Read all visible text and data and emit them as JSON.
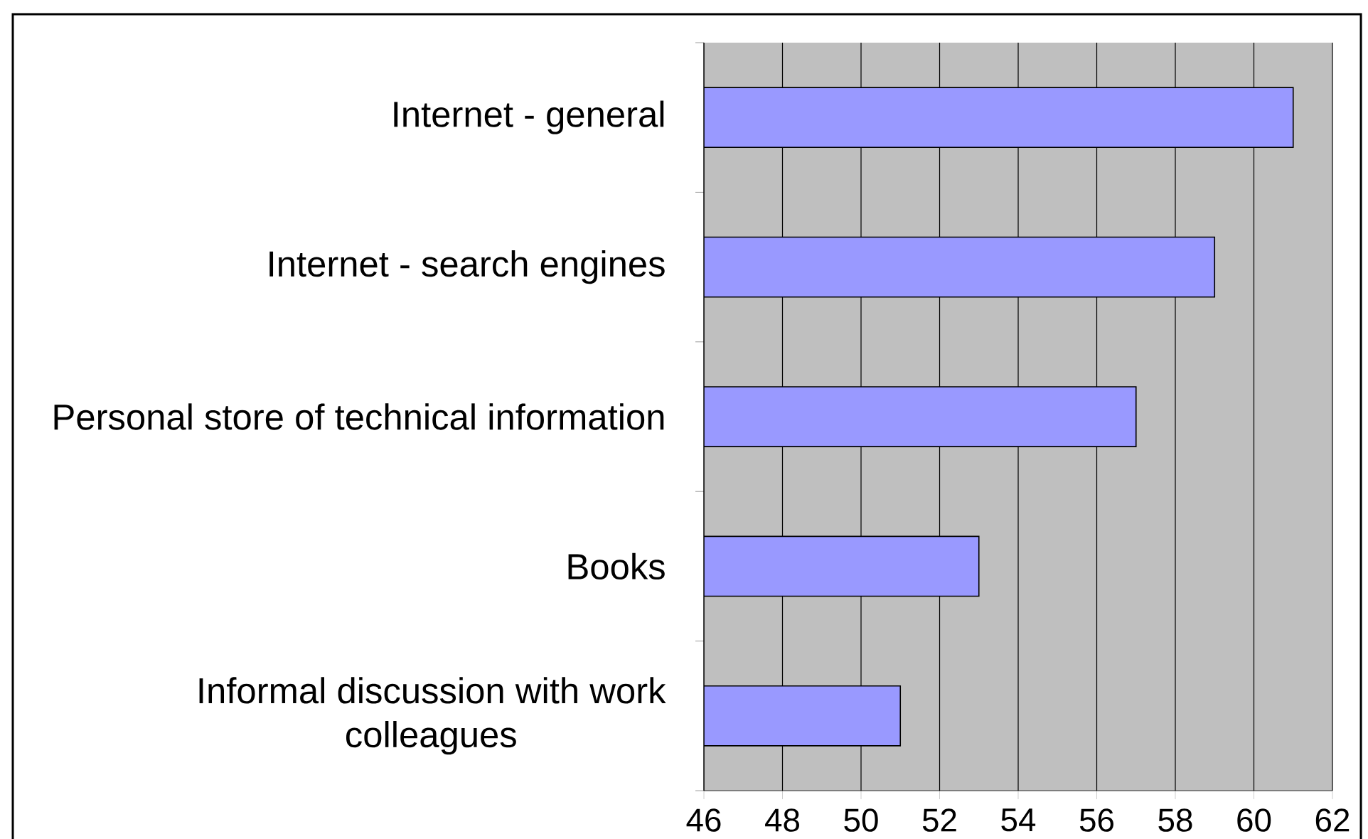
{
  "chart_data": {
    "type": "bar",
    "orientation": "horizontal",
    "categories": [
      "Internet - general",
      "Internet - search engines",
      "Personal store of technical information",
      "Books",
      "Informal discussion with work colleagues"
    ],
    "values": [
      61,
      59,
      57,
      53,
      51
    ],
    "color": "#9999ff",
    "xlim": [
      46,
      62
    ],
    "xticks": [
      46,
      48,
      50,
      52,
      54,
      56,
      58,
      60,
      62
    ],
    "grid": "x"
  }
}
